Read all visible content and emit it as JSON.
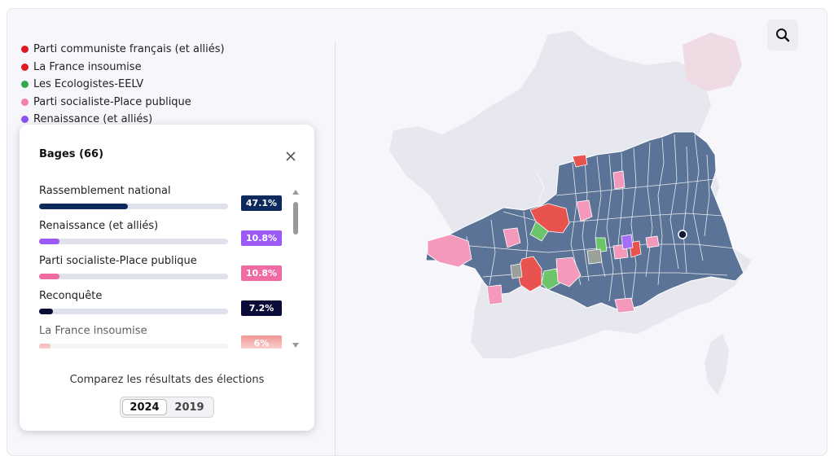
{
  "legend": [
    {
      "label": "Parti communiste français (et alliés)",
      "color": "#dd1a21"
    },
    {
      "label": "La France insoumise",
      "color": "#dd1a21"
    },
    {
      "label": "Les Ecologistes-EELV",
      "color": "#34a853"
    },
    {
      "label": "Parti socialiste-Place publique",
      "color": "#f57fa9"
    },
    {
      "label": "Renaissance (et alliés)",
      "color": "#8c52f5"
    }
  ],
  "panel": {
    "title": "Bages (66)",
    "results": [
      {
        "label": "Rassemblement national",
        "value": "47.1%",
        "fraction": 0.471,
        "color": "#0d2a5c"
      },
      {
        "label": "Renaissance (et alliés)",
        "value": "10.8%",
        "fraction": 0.108,
        "color": "#9b59f5"
      },
      {
        "label": "Parti socialiste-Place publique",
        "value": "10.8%",
        "fraction": 0.108,
        "color": "#f06aa3"
      },
      {
        "label": "Reconquête",
        "value": "7.2%",
        "fraction": 0.072,
        "color": "#0b0b3a"
      },
      {
        "label": "La France insoumise",
        "value": "6%",
        "fraction": 0.06,
        "color": "#e8524f"
      }
    ],
    "compare_text": "Comparez les résultats des élections",
    "years": [
      "2024",
      "2019"
    ],
    "selected_year": "2024"
  },
  "map": {
    "base_color": "#5b7396",
    "zoom_icon": "magnifier-icon"
  }
}
